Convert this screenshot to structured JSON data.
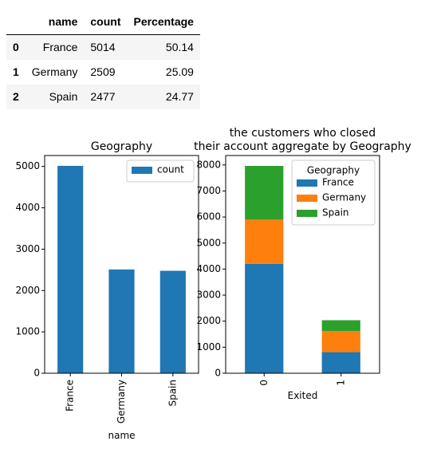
{
  "table": {
    "columns": [
      "name",
      "count",
      "Percentage"
    ],
    "rows": [
      {
        "index": "0",
        "name": "France",
        "count": "5014",
        "pct": "50.14"
      },
      {
        "index": "1",
        "name": "Germany",
        "count": "2509",
        "pct": "25.09"
      },
      {
        "index": "2",
        "name": "Spain",
        "count": "2477",
        "pct": "24.77"
      }
    ]
  },
  "chart_data": [
    {
      "type": "bar",
      "title": "Geography",
      "xlabel": "name",
      "ylabel": "",
      "categories": [
        "France",
        "Germany",
        "Spain"
      ],
      "series": [
        {
          "name": "count",
          "values": [
            5014,
            2509,
            2477
          ],
          "color": "#1f77b4"
        }
      ],
      "ylim": [
        0,
        5264
      ],
      "yticks": [
        0,
        1000,
        2000,
        3000,
        4000,
        5000
      ],
      "legend": "top-right",
      "grid": false
    },
    {
      "type": "bar",
      "stacked": true,
      "title_lines": [
        "the customers who closed",
        "their account aggregate by Geography"
      ],
      "xlabel": "Exited",
      "ylabel": "",
      "categories": [
        "0",
        "1"
      ],
      "series": [
        {
          "name": "France",
          "values": [
            4204,
            810
          ],
          "color": "#1f77b4"
        },
        {
          "name": "Germany",
          "values": [
            1695,
            814
          ],
          "color": "#ff7f0e"
        },
        {
          "name": "Spain",
          "values": [
            2064,
            413
          ],
          "color": "#2ca02c"
        }
      ],
      "ylim": [
        0,
        8362
      ],
      "yticks": [
        0,
        1000,
        2000,
        3000,
        4000,
        5000,
        6000,
        7000,
        8000
      ],
      "legend_title": "Geography",
      "legend": "top-right",
      "grid": false
    }
  ]
}
